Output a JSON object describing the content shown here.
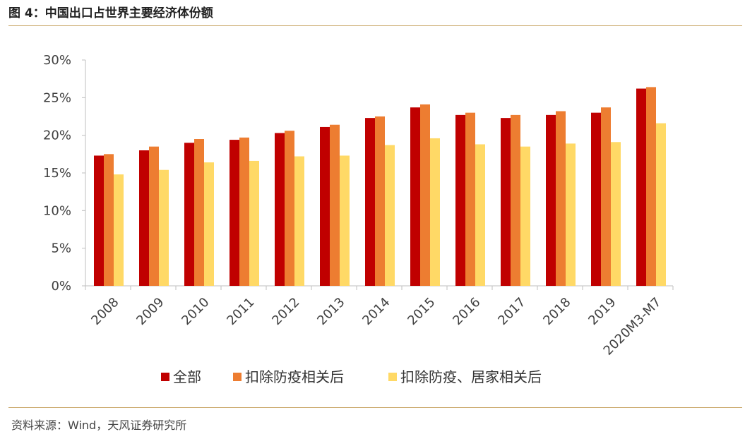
{
  "header": {
    "title": "图 4：中国出口占世界主要经济体份额"
  },
  "footer": {
    "source": "资料来源：Wind，天风证券研究所"
  },
  "chart_data": {
    "type": "bar",
    "title": "图 4：中国出口占世界主要经济体份额",
    "xlabel": "",
    "ylabel": "",
    "ylim": [
      0,
      30
    ],
    "y_ticks": [
      0,
      5,
      10,
      15,
      20,
      25,
      30
    ],
    "y_tick_labels": [
      "0%",
      "5%",
      "10%",
      "15%",
      "20%",
      "25%",
      "30%"
    ],
    "grid": false,
    "legend_position": "bottom",
    "categories": [
      "2008",
      "2009",
      "2010",
      "2011",
      "2012",
      "2013",
      "2014",
      "2015",
      "2016",
      "2017",
      "2018",
      "2019",
      "2020M3-M7"
    ],
    "series": [
      {
        "name": "全部",
        "color": "#c00000",
        "values": [
          17.3,
          18.0,
          19.0,
          19.4,
          20.3,
          21.1,
          22.3,
          23.7,
          22.7,
          22.3,
          22.7,
          23.0,
          26.2
        ]
      },
      {
        "name": "扣除防疫相关后",
        "color": "#ed7d31",
        "values": [
          17.5,
          18.5,
          19.5,
          19.7,
          20.6,
          21.4,
          22.5,
          24.1,
          23.0,
          22.7,
          23.2,
          23.7,
          26.4
        ]
      },
      {
        "name": "扣除防疫、居家相关后",
        "color": "#ffd966",
        "values": [
          14.8,
          15.4,
          16.4,
          16.6,
          17.2,
          17.3,
          18.7,
          19.6,
          18.8,
          18.5,
          18.9,
          19.1,
          21.6
        ]
      }
    ]
  }
}
